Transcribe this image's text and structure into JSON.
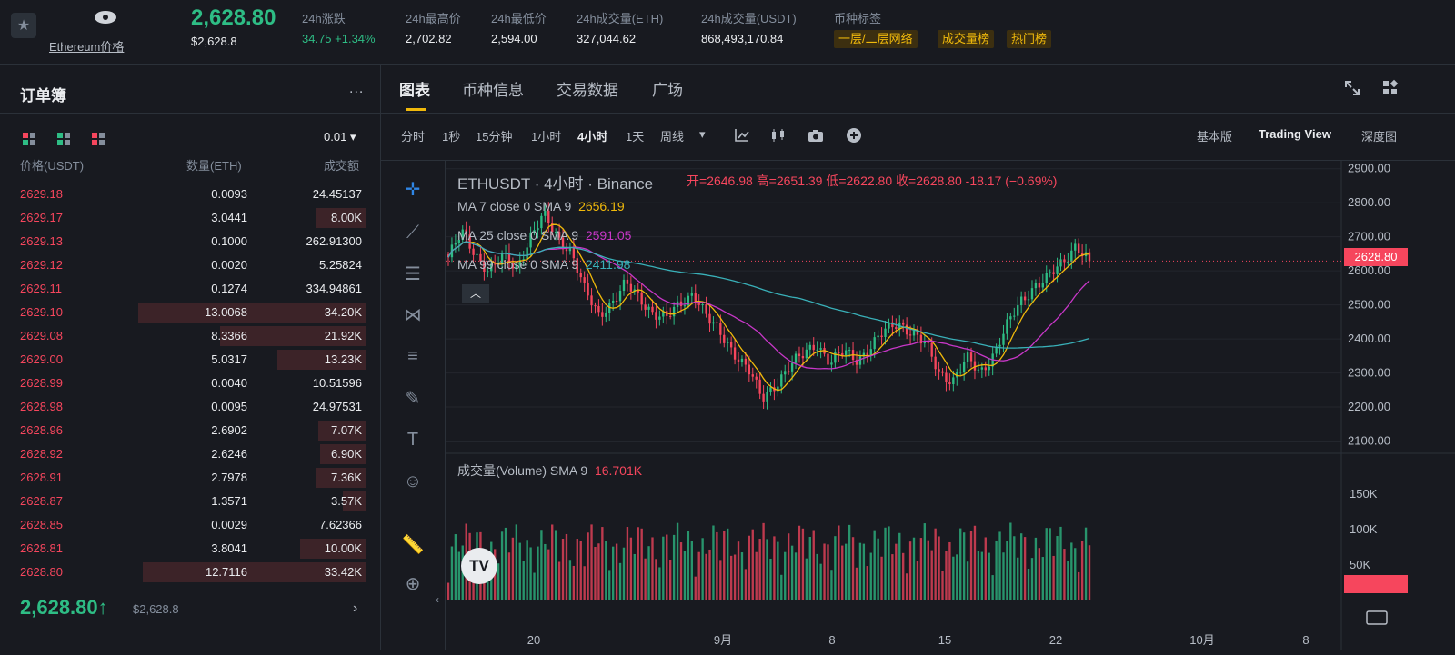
{
  "header": {
    "coin_link": "Ethereum价格",
    "price": "2,628.80",
    "sub_price": "$2,628.8",
    "stats": [
      {
        "label": "24h涨跌",
        "value": "34.75 +1.34%"
      },
      {
        "label": "24h最高价",
        "value": "2,702.82"
      },
      {
        "label": "24h最低价",
        "value": "2,594.00"
      },
      {
        "label": "24h成交量(ETH)",
        "value": "327,044.62"
      },
      {
        "label": "24h成交量(USDT)",
        "value": "868,493,170.84"
      }
    ],
    "tags_label": "币种标签",
    "tags": [
      "一层/二层网络",
      "成交量榜",
      "热门榜"
    ]
  },
  "orderbook": {
    "title": "订单簿",
    "more": "...",
    "precision": "0.01",
    "col_price": "价格(USDT)",
    "col_qty": "数量(ETH)",
    "col_total": "成交额",
    "rows": [
      {
        "price": "2629.18",
        "qty": "0.0093",
        "total": "24.45137",
        "depth": 0.0
      },
      {
        "price": "2629.17",
        "qty": "3.0441",
        "total": "8.00K",
        "depth": 0.22
      },
      {
        "price": "2629.13",
        "qty": "0.1000",
        "total": "262.91300",
        "depth": 0.0
      },
      {
        "price": "2629.12",
        "qty": "0.0020",
        "total": "5.25824",
        "depth": 0.0
      },
      {
        "price": "2629.11",
        "qty": "0.1274",
        "total": "334.94861",
        "depth": 0.0
      },
      {
        "price": "2629.10",
        "qty": "13.0068",
        "total": "34.20K",
        "depth": 1.0
      },
      {
        "price": "2629.08",
        "qty": "8.3366",
        "total": "21.92K",
        "depth": 0.64
      },
      {
        "price": "2629.00",
        "qty": "5.0317",
        "total": "13.23K",
        "depth": 0.39
      },
      {
        "price": "2628.99",
        "qty": "0.0040",
        "total": "10.51596",
        "depth": 0.0
      },
      {
        "price": "2628.98",
        "qty": "0.0095",
        "total": "24.97531",
        "depth": 0.0
      },
      {
        "price": "2628.96",
        "qty": "2.6902",
        "total": "7.07K",
        "depth": 0.21
      },
      {
        "price": "2628.92",
        "qty": "2.6246",
        "total": "6.90K",
        "depth": 0.2
      },
      {
        "price": "2628.91",
        "qty": "2.7978",
        "total": "7.36K",
        "depth": 0.22
      },
      {
        "price": "2628.87",
        "qty": "1.3571",
        "total": "3.57K",
        "depth": 0.1
      },
      {
        "price": "2628.85",
        "qty": "0.0029",
        "total": "7.62366",
        "depth": 0.0
      },
      {
        "price": "2628.81",
        "qty": "3.8041",
        "total": "10.00K",
        "depth": 0.29
      },
      {
        "price": "2628.80",
        "qty": "12.7116",
        "total": "33.42K",
        "depth": 0.98
      }
    ],
    "last_price": "2,628.80",
    "last_arrow": "↑",
    "last_usd": "$2,628.8"
  },
  "chart_panel": {
    "tabs": [
      "图表",
      "币种信息",
      "交易数据",
      "广场"
    ],
    "intervals": [
      "分时",
      "1秒",
      "15分钟",
      "1小时",
      "4小时",
      "1天",
      "周线"
    ],
    "active_interval": "4小时",
    "views": [
      "基本版",
      "Trading View",
      "深度图"
    ],
    "active_view": "Trading View"
  },
  "chart_legend": {
    "symbol": "ETHUSDT · 4小时 · Binance",
    "ohlc": "开=2646.98  高=2651.39  低=2622.80  收=2628.80  -18.17 (−0.69%)",
    "ma7_label": "MA 7 close 0 SMA 9",
    "ma7_value": "2656.19",
    "ma25_label": "MA 25 close 0 SMA 9",
    "ma25_value": "2591.05",
    "ma99_label": "MA 99 close 0 SMA 9",
    "ma99_value": "2411.98",
    "vol_label": "成交量(Volume) SMA 9",
    "vol_value": "16.701K",
    "current_price_tag": "2628.80"
  },
  "colors": {
    "up": "#2ebd85",
    "down": "#f6465d",
    "accent": "#f0b90b",
    "ma7": "#f0b90b",
    "ma25": "#c837c8",
    "ma99": "#39b0b8"
  },
  "chart_data": {
    "type": "candlestick",
    "x_tick_labels": [
      "20",
      "9月",
      "8",
      "15",
      "22",
      "10月",
      "8"
    ],
    "y_tick_labels": [
      "2100.00",
      "2200.00",
      "2300.00",
      "2400.00",
      "2500.00",
      "2600.00",
      "2700.00",
      "2800.00",
      "2900.00"
    ],
    "ylim": [
      2080,
      2910
    ],
    "volume_tick_labels": [
      "50K",
      "100K",
      "150K"
    ],
    "volume_ylim": [
      0,
      185
    ],
    "close_path": [
      2640,
      2710,
      2650,
      2600,
      2640,
      2610,
      2700,
      2760,
      2700,
      2660,
      2540,
      2470,
      2510,
      2560,
      2520,
      2480,
      2460,
      2500,
      2540,
      2460,
      2410,
      2360,
      2310,
      2220,
      2270,
      2320,
      2350,
      2390,
      2330,
      2360,
      2340,
      2380,
      2420,
      2450,
      2420,
      2380,
      2300,
      2280,
      2340,
      2300,
      2360,
      2440,
      2510,
      2560,
      2580,
      2620,
      2680,
      2628.8
    ]
  }
}
